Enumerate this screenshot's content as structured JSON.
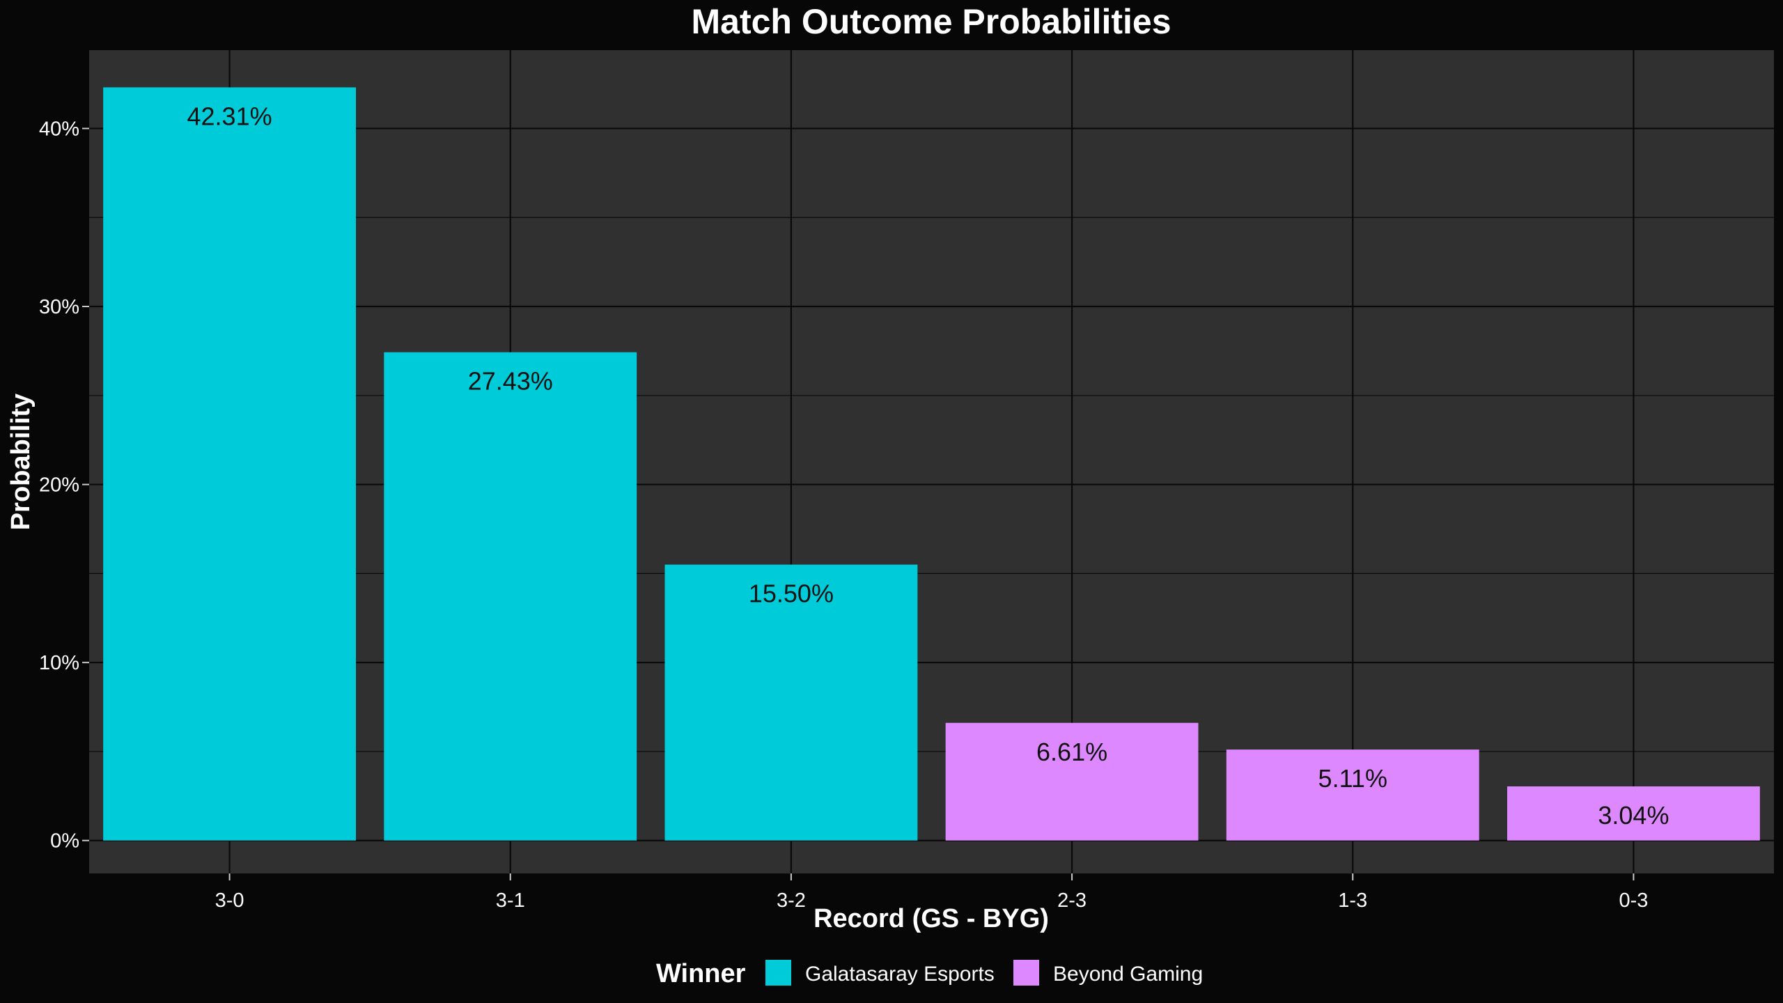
{
  "chart_data": {
    "type": "bar",
    "title": "Match Outcome Probabilities",
    "xlabel": "Record (GS - BYG)",
    "ylabel": "Probability",
    "categories": [
      "3-0",
      "3-1",
      "3-2",
      "2-3",
      "1-3",
      "0-3"
    ],
    "values": [
      42.31,
      27.43,
      15.5,
      6.61,
      5.11,
      3.04
    ],
    "data_labels": [
      "42.31%",
      "27.43%",
      "15.50%",
      "6.61%",
      "5.11%",
      "3.04%"
    ],
    "winner": [
      "Galatasaray Esports",
      "Galatasaray Esports",
      "Galatasaray Esports",
      "Beyond Gaming",
      "Beyond Gaming",
      "Beyond Gaming"
    ],
    "ylim": [
      -1.85,
      44.4
    ],
    "yticks": [
      0,
      10,
      20,
      30,
      40
    ],
    "ytick_labels": [
      "0%",
      "10%",
      "20%",
      "30%",
      "40%"
    ],
    "grid": true,
    "legend": {
      "title": "Winner",
      "position": "bottom",
      "entries": [
        {
          "label": "Galatasaray Esports",
          "color": "#00CCD9"
        },
        {
          "label": "Beyond Gaming",
          "color": "#DD88FF"
        }
      ]
    },
    "colors": {
      "background": "#070707",
      "panel": "#303030",
      "grid": "#0a0a0a",
      "text": "#ffffff",
      "data_label": "#111111"
    }
  }
}
